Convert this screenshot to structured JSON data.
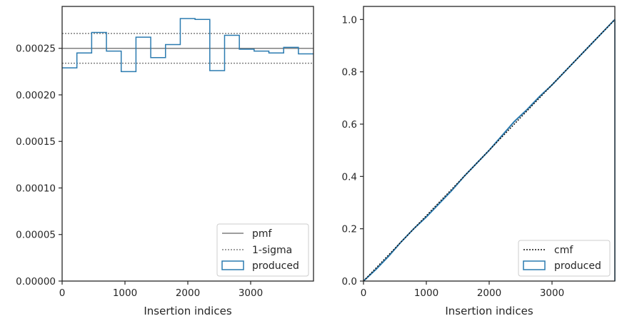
{
  "chart_data": [
    {
      "type": "histogram-step",
      "xlabel": "Insertion indices",
      "ylabel": "",
      "xlim": [
        0,
        4000
      ],
      "ylim": [
        0,
        0.000295
      ],
      "x_ticks": [
        0,
        1000,
        2000,
        3000
      ],
      "x_tick_labels": [
        "0",
        "1000",
        "2000",
        "3000"
      ],
      "y_ticks": [
        0,
        5e-05,
        0.0001,
        0.00015,
        0.0002,
        0.00025
      ],
      "y_tick_labels": [
        "0.00000",
        "0.00005",
        "0.00010",
        "0.00015",
        "0.00020",
        "0.00025"
      ],
      "pmf": 0.00025,
      "sigma_upper": 0.000266,
      "sigma_lower": 0.000234,
      "bin_edges": [
        0,
        235,
        470,
        705,
        940,
        1175,
        1410,
        1645,
        1880,
        2115,
        2350,
        2585,
        2820,
        3055,
        3290,
        3525,
        3760,
        4000
      ],
      "counts": [
        0.000229,
        0.000245,
        0.000267,
        0.000247,
        0.000225,
        0.000262,
        0.00024,
        0.000254,
        0.000282,
        0.000281,
        0.000226,
        0.000264,
        0.000249,
        0.000247,
        0.000245,
        0.000251,
        0.000244
      ],
      "legend_position": "lower right",
      "legend": [
        {
          "label": "pmf",
          "style": "solid-gray"
        },
        {
          "label": "1-sigma",
          "style": "dotted-gray"
        },
        {
          "label": "produced",
          "style": "blue-box"
        }
      ]
    },
    {
      "type": "cdf-step",
      "xlabel": "Insertion indices",
      "ylabel": "",
      "xlim": [
        0,
        4000
      ],
      "ylim": [
        0,
        1.05
      ],
      "x_ticks": [
        0,
        1000,
        2000,
        3000
      ],
      "x_tick_labels": [
        "0",
        "1000",
        "2000",
        "3000"
      ],
      "y_ticks": [
        0,
        0.2,
        0.4,
        0.6,
        0.8,
        1.0
      ],
      "y_tick_labels": [
        "0.0",
        "0.2",
        "0.4",
        "0.6",
        "0.8",
        "1.0"
      ],
      "cmf_x": [
        0,
        4000
      ],
      "cmf_y": [
        0,
        1
      ],
      "produced_x": [
        0,
        200,
        400,
        600,
        800,
        1000,
        1200,
        1400,
        1600,
        1800,
        2000,
        2200,
        2400,
        2600,
        2800,
        3000,
        3200,
        3400,
        3600,
        3800,
        4000
      ],
      "produced_y": [
        0,
        0.045,
        0.095,
        0.15,
        0.2,
        0.245,
        0.295,
        0.345,
        0.4,
        0.45,
        0.5,
        0.555,
        0.61,
        0.655,
        0.705,
        0.75,
        0.8,
        0.85,
        0.9,
        0.95,
        1.0
      ],
      "legend_position": "lower right",
      "legend": [
        {
          "label": "cmf",
          "style": "dotted-black"
        },
        {
          "label": "produced",
          "style": "blue-box"
        }
      ]
    }
  ],
  "colors": {
    "produced": "#2b7bb0",
    "pmf": "#7f7f7f",
    "sigma": "#7f7f7f",
    "cmf": "#111111",
    "axes": "#262626"
  }
}
